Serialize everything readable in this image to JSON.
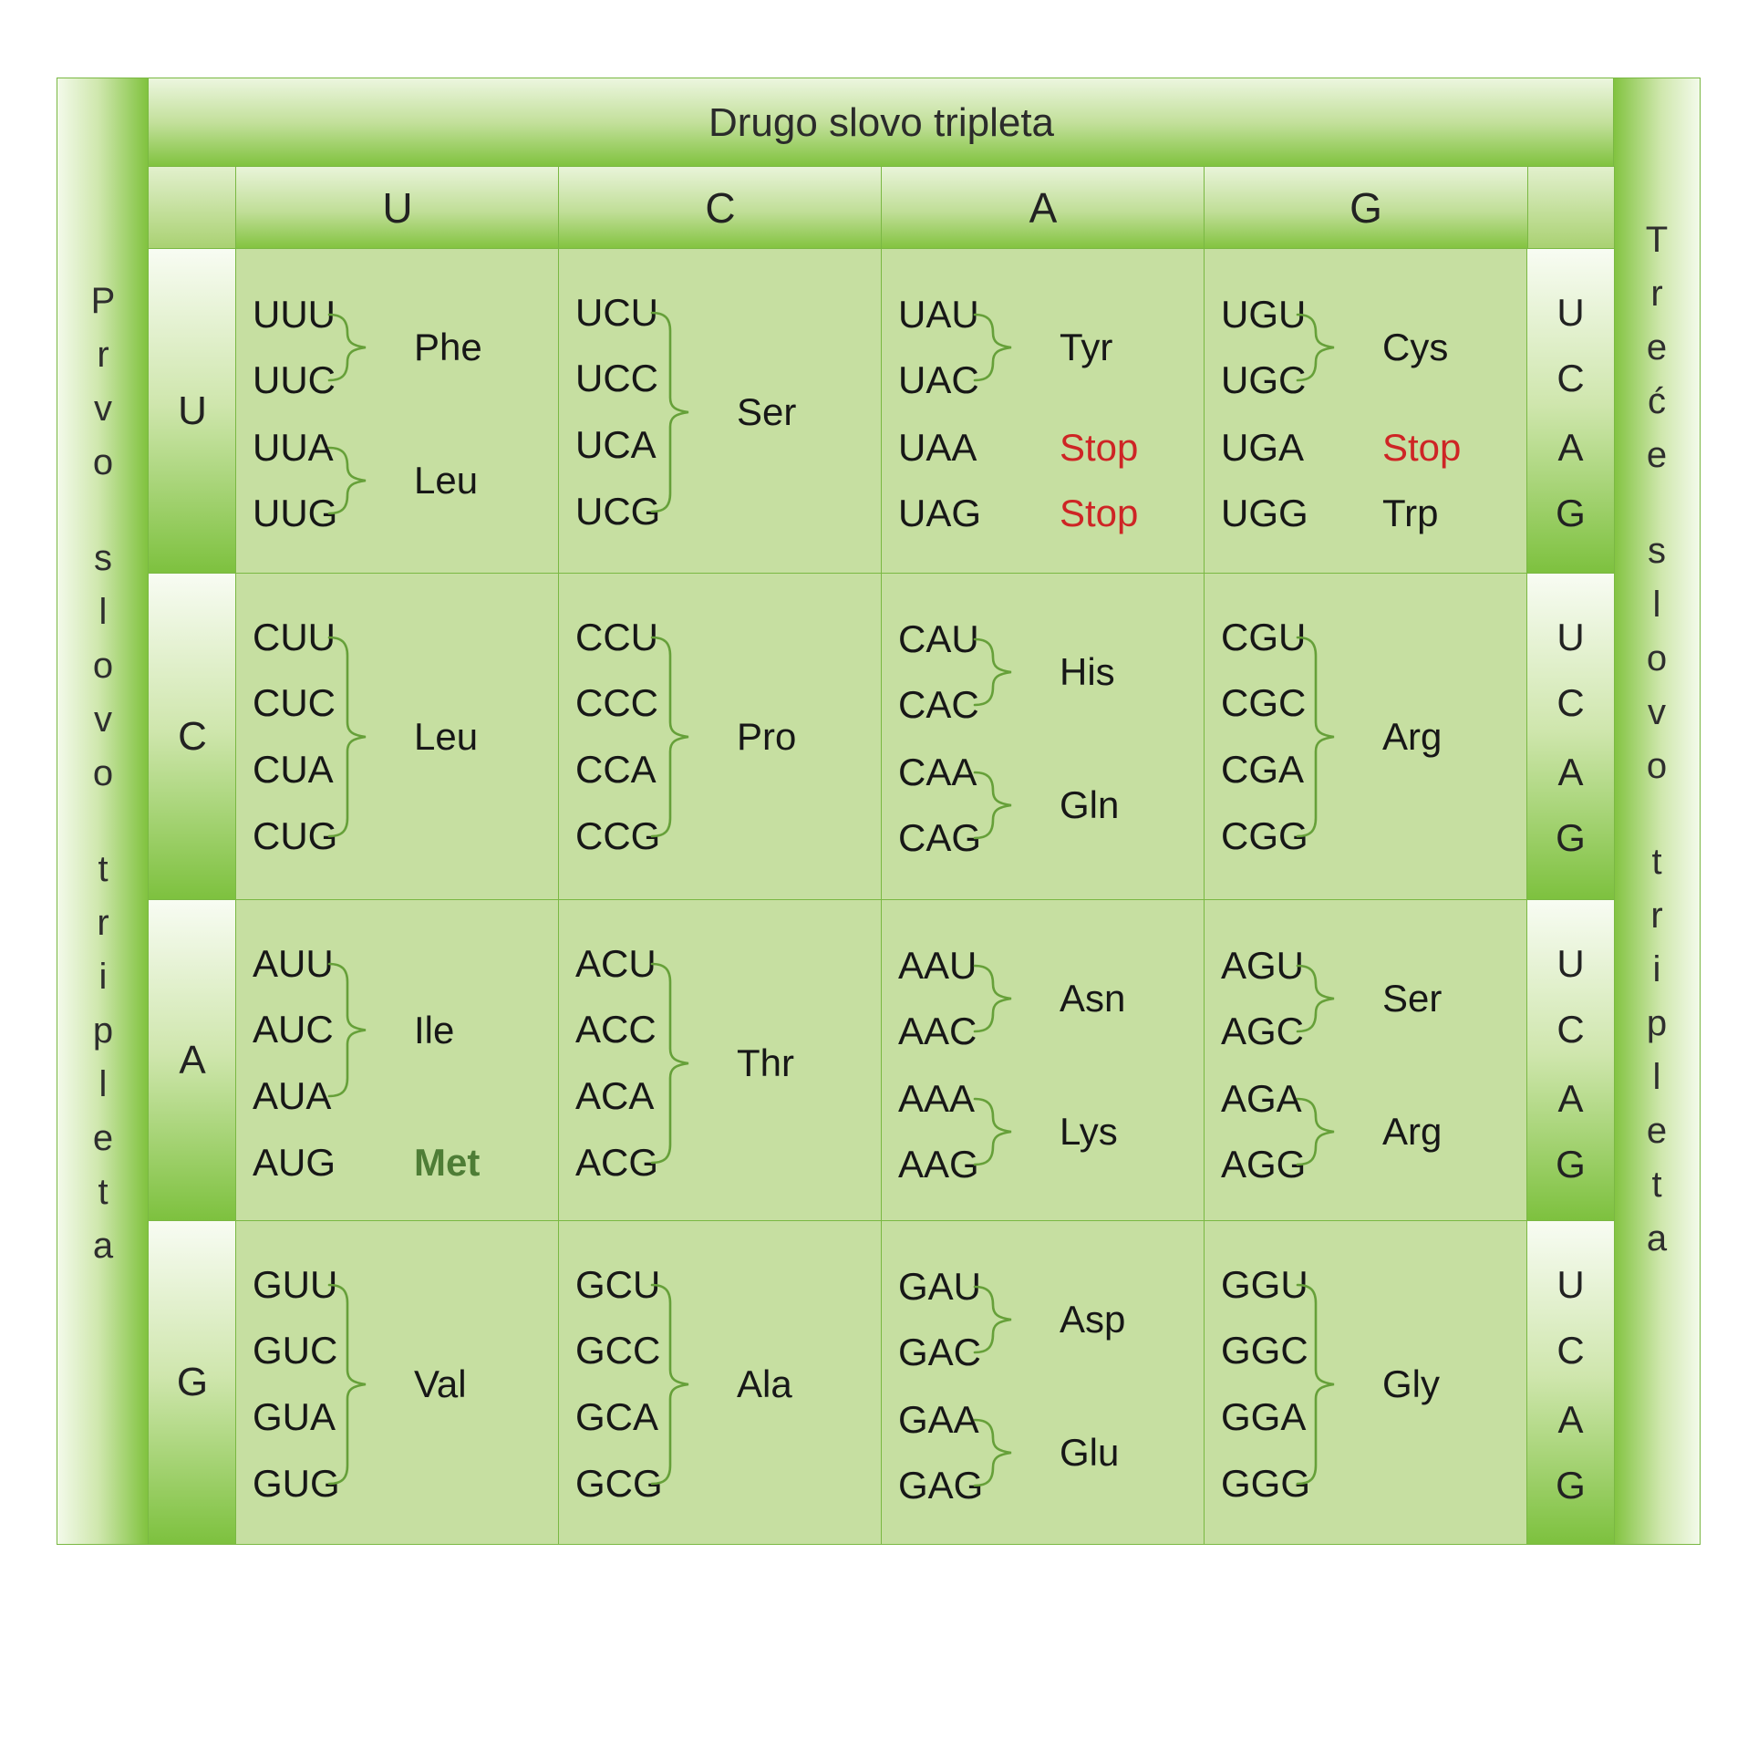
{
  "figure": {
    "top_axis_title": "Drugo slovo tripleta",
    "left_axis_title": "Prvo slovo tripleta",
    "right_axis_title": "Treće slovo tripleta"
  },
  "second_letters": [
    "U",
    "C",
    "A",
    "G"
  ],
  "third_letters": [
    "U",
    "C",
    "A",
    "G"
  ],
  "rows": [
    {
      "first_letter": "U",
      "cells": [
        {
          "second_letter": "U",
          "layout": "paired",
          "codons": [
            "UUU",
            "UUC",
            "UUA",
            "UUG"
          ],
          "groups": [
            {
              "from": 0,
              "to": 1,
              "label": "Phe"
            },
            {
              "from": 2,
              "to": 3,
              "label": "Leu"
            }
          ]
        },
        {
          "second_letter": "C",
          "layout": "even",
          "codons": [
            "UCU",
            "UCC",
            "UCA",
            "UCG"
          ],
          "groups": [
            {
              "from": 0,
              "to": 3,
              "label": "Ser"
            }
          ]
        },
        {
          "second_letter": "A",
          "layout": "paired",
          "codons": [
            "UAU",
            "UAC",
            "UAA",
            "UAG"
          ],
          "groups": [
            {
              "from": 0,
              "to": 1,
              "label": "Tyr"
            },
            {
              "line": 2,
              "label": "Stop",
              "style": "stop"
            },
            {
              "line": 3,
              "label": "Stop",
              "style": "stop"
            }
          ]
        },
        {
          "second_letter": "G",
          "layout": "paired",
          "codons": [
            "UGU",
            "UGC",
            "UGA",
            "UGG"
          ],
          "groups": [
            {
              "from": 0,
              "to": 1,
              "label": "Cys"
            },
            {
              "line": 2,
              "label": "Stop",
              "style": "stop"
            },
            {
              "line": 3,
              "label": "Trp"
            }
          ]
        }
      ]
    },
    {
      "first_letter": "C",
      "cells": [
        {
          "second_letter": "U",
          "layout": "even",
          "codons": [
            "CUU",
            "CUC",
            "CUA",
            "CUG"
          ],
          "groups": [
            {
              "from": 0,
              "to": 3,
              "label": "Leu"
            }
          ]
        },
        {
          "second_letter": "C",
          "layout": "even",
          "codons": [
            "CCU",
            "CCC",
            "CCA",
            "CCG"
          ],
          "groups": [
            {
              "from": 0,
              "to": 3,
              "label": "Pro"
            }
          ]
        },
        {
          "second_letter": "A",
          "layout": "paired",
          "codons": [
            "CAU",
            "CAC",
            "CAA",
            "CAG"
          ],
          "groups": [
            {
              "from": 0,
              "to": 1,
              "label": "His"
            },
            {
              "from": 2,
              "to": 3,
              "label": "Gln"
            }
          ]
        },
        {
          "second_letter": "G",
          "layout": "even",
          "codons": [
            "CGU",
            "CGC",
            "CGA",
            "CGG"
          ],
          "groups": [
            {
              "from": 0,
              "to": 3,
              "label": "Arg"
            }
          ]
        }
      ]
    },
    {
      "first_letter": "A",
      "cells": [
        {
          "second_letter": "U",
          "layout": "even",
          "codons": [
            "AUU",
            "AUC",
            "AUA",
            "AUG"
          ],
          "groups": [
            {
              "from": 0,
              "to": 2,
              "label": "Ile"
            },
            {
              "line": 3,
              "label": "Met",
              "style": "start"
            }
          ]
        },
        {
          "second_letter": "C",
          "layout": "even",
          "codons": [
            "ACU",
            "ACC",
            "ACA",
            "ACG"
          ],
          "groups": [
            {
              "from": 0,
              "to": 3,
              "label": "Thr"
            }
          ]
        },
        {
          "second_letter": "A",
          "layout": "paired",
          "codons": [
            "AAU",
            "AAC",
            "AAA",
            "AAG"
          ],
          "groups": [
            {
              "from": 0,
              "to": 1,
              "label": "Asn"
            },
            {
              "from": 2,
              "to": 3,
              "label": "Lys"
            }
          ]
        },
        {
          "second_letter": "G",
          "layout": "paired",
          "codons": [
            "AGU",
            "AGC",
            "AGA",
            "AGG"
          ],
          "groups": [
            {
              "from": 0,
              "to": 1,
              "label": "Ser"
            },
            {
              "from": 2,
              "to": 3,
              "label": "Arg"
            }
          ]
        }
      ]
    },
    {
      "first_letter": "G",
      "cells": [
        {
          "second_letter": "U",
          "layout": "even",
          "codons": [
            "GUU",
            "GUC",
            "GUA",
            "GUG"
          ],
          "groups": [
            {
              "from": 0,
              "to": 3,
              "label": "Val"
            }
          ]
        },
        {
          "second_letter": "C",
          "layout": "even",
          "codons": [
            "GCU",
            "GCC",
            "GCA",
            "GCG"
          ],
          "groups": [
            {
              "from": 0,
              "to": 3,
              "label": "Ala"
            }
          ]
        },
        {
          "second_letter": "A",
          "layout": "paired",
          "codons": [
            "GAU",
            "GAC",
            "GAA",
            "GAG"
          ],
          "groups": [
            {
              "from": 0,
              "to": 1,
              "label": "Asp"
            },
            {
              "from": 2,
              "to": 3,
              "label": "Glu"
            }
          ]
        },
        {
          "second_letter": "G",
          "layout": "even",
          "codons": [
            "GGU",
            "GGC",
            "GGA",
            "GGG"
          ],
          "groups": [
            {
              "from": 0,
              "to": 3,
              "label": "Gly"
            }
          ]
        }
      ]
    }
  ],
  "colors": {
    "accent_green": "#7fc23d",
    "cell_background": "#c6dfa1",
    "grid_line": "#7ab843",
    "stop_label": "#ce2525",
    "start_label": "#4e7d36",
    "brace": "#66a039",
    "text": "#171717"
  }
}
